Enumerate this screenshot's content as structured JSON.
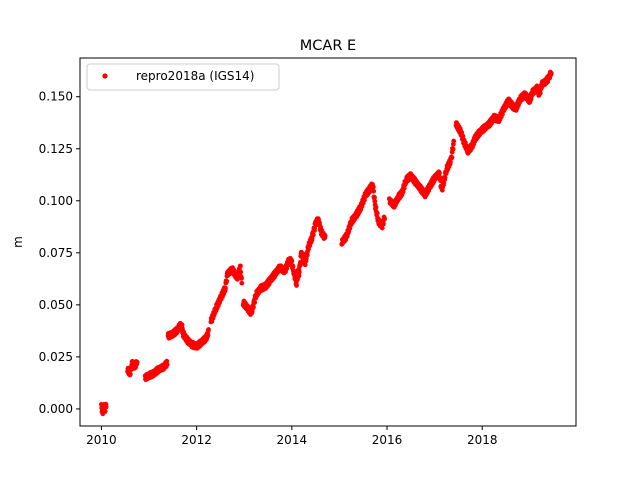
{
  "chart_data": {
    "type": "scatter",
    "title": "MCAR E",
    "xlabel": "",
    "ylabel": "m",
    "xlim": [
      2009.55,
      2019.97
    ],
    "ylim": [
      -0.0082,
      0.1686
    ],
    "xticks": [
      2010,
      2012,
      2014,
      2016,
      2018
    ],
    "xtick_labels": [
      "2010",
      "2012",
      "2014",
      "2016",
      "2018"
    ],
    "yticks": [
      0.0,
      0.025,
      0.05,
      0.075,
      0.1,
      0.125,
      0.15
    ],
    "ytick_labels": [
      "0.000",
      "0.025",
      "0.050",
      "0.075",
      "0.100",
      "0.125",
      "0.150"
    ],
    "grid": false,
    "legend_position": "top-left",
    "series": [
      {
        "name": "repro2018a (IGS14)",
        "color": "#ff0000",
        "marker": "circle",
        "segments": [
          [
            [
              2010.0,
              0.001
            ],
            [
              2010.03,
              -0.002
            ],
            [
              2010.06,
              0.003
            ],
            [
              2010.08,
              0.0
            ],
            [
              2010.1,
              0.002
            ]
          ],
          [
            [
              2010.55,
              0.019
            ],
            [
              2010.6,
              0.017
            ],
            [
              2010.65,
              0.022
            ],
            [
              2010.7,
              0.02
            ],
            [
              2010.75,
              0.023
            ]
          ],
          [
            [
              2010.92,
              0.015
            ],
            [
              2011.0,
              0.016
            ],
            [
              2011.1,
              0.017
            ],
            [
              2011.2,
              0.019
            ],
            [
              2011.3,
              0.02
            ],
            [
              2011.38,
              0.022
            ]
          ],
          [
            [
              2011.4,
              0.035
            ],
            [
              2011.5,
              0.036
            ],
            [
              2011.6,
              0.038
            ],
            [
              2011.68,
              0.041
            ],
            [
              2011.72,
              0.036
            ],
            [
              2011.8,
              0.033
            ],
            [
              2011.9,
              0.031
            ],
            [
              2012.0,
              0.03
            ],
            [
              2012.1,
              0.032
            ],
            [
              2012.2,
              0.034
            ],
            [
              2012.25,
              0.037
            ]
          ],
          [
            [
              2012.3,
              0.042
            ],
            [
              2012.4,
              0.048
            ],
            [
              2012.5,
              0.053
            ],
            [
              2012.6,
              0.058
            ],
            [
              2012.65,
              0.065
            ],
            [
              2012.75,
              0.067
            ],
            [
              2012.85,
              0.063
            ],
            [
              2012.92,
              0.068
            ],
            [
              2012.95,
              0.06
            ]
          ],
          [
            [
              2012.98,
              0.051
            ],
            [
              2013.05,
              0.049
            ],
            [
              2013.15,
              0.046
            ],
            [
              2013.25,
              0.055
            ],
            [
              2013.35,
              0.058
            ],
            [
              2013.45,
              0.059
            ],
            [
              2013.55,
              0.062
            ],
            [
              2013.65,
              0.065
            ],
            [
              2013.75,
              0.068
            ],
            [
              2013.85,
              0.066
            ],
            [
              2013.95,
              0.072
            ],
            [
              2014.0,
              0.07
            ],
            [
              2014.1,
              0.06
            ],
            [
              2014.15,
              0.068
            ]
          ],
          [
            [
              2014.15,
              0.065
            ],
            [
              2014.2,
              0.075
            ],
            [
              2014.28,
              0.07
            ],
            [
              2014.35,
              0.078
            ],
            [
              2014.42,
              0.082
            ],
            [
              2014.5,
              0.089
            ],
            [
              2014.55,
              0.091
            ],
            [
              2014.62,
              0.085
            ],
            [
              2014.7,
              0.082
            ]
          ],
          [
            [
              2015.05,
              0.08
            ],
            [
              2015.15,
              0.083
            ],
            [
              2015.25,
              0.09
            ],
            [
              2015.35,
              0.093
            ],
            [
              2015.45,
              0.097
            ],
            [
              2015.55,
              0.103
            ],
            [
              2015.62,
              0.105
            ],
            [
              2015.7,
              0.108
            ],
            [
              2015.75,
              0.098
            ],
            [
              2015.82,
              0.09
            ],
            [
              2015.9,
              0.088
            ],
            [
              2015.95,
              0.092
            ]
          ],
          [
            [
              2016.05,
              0.1
            ],
            [
              2016.15,
              0.098
            ],
            [
              2016.25,
              0.102
            ],
            [
              2016.32,
              0.104
            ],
            [
              2016.4,
              0.11
            ],
            [
              2016.5,
              0.112
            ],
            [
              2016.6,
              0.109
            ],
            [
              2016.7,
              0.106
            ],
            [
              2016.8,
              0.103
            ],
            [
              2016.9,
              0.107
            ],
            [
              2017.0,
              0.111
            ],
            [
              2017.1,
              0.113
            ],
            [
              2017.15,
              0.105
            ],
            [
              2017.25,
              0.115
            ],
            [
              2017.35,
              0.12
            ],
            [
              2017.4,
              0.128
            ]
          ],
          [
            [
              2017.45,
              0.137
            ],
            [
              2017.55,
              0.133
            ],
            [
              2017.62,
              0.128
            ],
            [
              2017.7,
              0.124
            ],
            [
              2017.78,
              0.126
            ],
            [
              2017.85,
              0.13
            ],
            [
              2017.95,
              0.133
            ],
            [
              2018.05,
              0.135
            ],
            [
              2018.15,
              0.137
            ],
            [
              2018.25,
              0.14
            ],
            [
              2018.35,
              0.139
            ],
            [
              2018.45,
              0.144
            ],
            [
              2018.55,
              0.148
            ],
            [
              2018.62,
              0.146
            ],
            [
              2018.7,
              0.144
            ],
            [
              2018.8,
              0.149
            ],
            [
              2018.9,
              0.151
            ],
            [
              2019.0,
              0.148
            ],
            [
              2019.05,
              0.152
            ],
            [
              2019.15,
              0.154
            ],
            [
              2019.2,
              0.151
            ],
            [
              2019.25,
              0.156
            ],
            [
              2019.32,
              0.157
            ],
            [
              2019.4,
              0.159
            ],
            [
              2019.45,
              0.162
            ]
          ]
        ]
      }
    ]
  }
}
